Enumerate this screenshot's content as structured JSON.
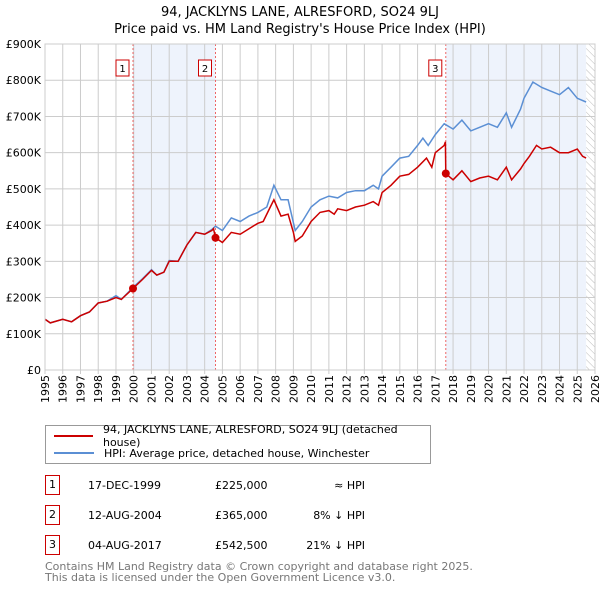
{
  "title": {
    "line1": "94, JACKLYNS LANE, ALRESFORD, SO24 9LJ",
    "line2": "Price paid vs. HM Land Registry's House Price Index (HPI)"
  },
  "legend": {
    "red": "94, JACKLYNS LANE, ALRESFORD, SO24 9LJ (detached house)",
    "blue": "HPI: Average price, detached house, Winchester"
  },
  "transactions": [
    {
      "n": "1",
      "date": "17-DEC-1999",
      "price": "£225,000",
      "hpi": "≈ HPI"
    },
    {
      "n": "2",
      "date": "12-AUG-2004",
      "price": "£365,000",
      "hpi": "8% ↓ HPI"
    },
    {
      "n": "3",
      "date": "04-AUG-2017",
      "price": "£542,500",
      "hpi": "21% ↓ HPI"
    }
  ],
  "footer": {
    "line1": "Contains HM Land Registry data © Crown copyright and database right 2025.",
    "line2": "This data is licensed under the Open Government Licence v3.0."
  },
  "chart_data": {
    "type": "line",
    "xlim": [
      1995,
      2026
    ],
    "ylim": [
      0,
      900000
    ],
    "yticks": [
      0,
      100000,
      200000,
      300000,
      400000,
      500000,
      600000,
      700000,
      800000,
      900000
    ],
    "ytick_labels": [
      "£0",
      "£100K",
      "£200K",
      "£300K",
      "£400K",
      "£500K",
      "£600K",
      "£700K",
      "£800K",
      "£900K"
    ],
    "xticks": [
      "1995",
      "1996",
      "1997",
      "1998",
      "1999",
      "2000",
      "2001",
      "2002",
      "2003",
      "2004",
      "2005",
      "2006",
      "2007",
      "2008",
      "2009",
      "2010",
      "2011",
      "2012",
      "2013",
      "2014",
      "2015",
      "2016",
      "2017",
      "2018",
      "2019",
      "2020",
      "2021",
      "2022",
      "2023",
      "2024",
      "2025",
      "2026"
    ],
    "grid": true,
    "colors": {
      "red": "#cc0000",
      "blue": "#5b8fd4",
      "shade": "#eef3fc"
    },
    "sales": [
      {
        "label": "1",
        "x": 1999.96,
        "y": 225000
      },
      {
        "label": "2",
        "x": 2004.61,
        "y": 365000
      },
      {
        "label": "3",
        "x": 2017.59,
        "y": 542500
      }
    ],
    "shaded_ranges": [
      [
        1999.96,
        2004.61
      ],
      [
        2017.59,
        2025.5
      ]
    ],
    "hatched_from": 2025.5,
    "series": [
      {
        "name": "94, JACKLYNS LANE, ALRESFORD, SO24 9LJ (detached house)",
        "color": "#cc0000",
        "points": [
          [
            1995,
            140
          ],
          [
            1995.3,
            130
          ],
          [
            1996,
            140
          ],
          [
            1996.5,
            133
          ],
          [
            1997,
            150
          ],
          [
            1997.5,
            160
          ],
          [
            1998,
            185
          ],
          [
            1998.5,
            190
          ],
          [
            1999,
            200
          ],
          [
            1999.3,
            195
          ],
          [
            1999.96,
            225
          ],
          [
            2000.5,
            250
          ],
          [
            2001,
            275
          ],
          [
            2001.3,
            262
          ],
          [
            2001.7,
            270
          ],
          [
            2002,
            300
          ],
          [
            2002.5,
            300
          ],
          [
            2003,
            345
          ],
          [
            2003.5,
            380
          ],
          [
            2004,
            375
          ],
          [
            2004.4,
            385
          ],
          [
            2004.5,
            390
          ],
          [
            2004.61,
            365
          ],
          [
            2005,
            352
          ],
          [
            2005.5,
            380
          ],
          [
            2006,
            375
          ],
          [
            2006.5,
            390
          ],
          [
            2007,
            405
          ],
          [
            2007.3,
            410
          ],
          [
            2007.7,
            450
          ],
          [
            2007.9,
            470
          ],
          [
            2008.3,
            425
          ],
          [
            2008.7,
            430
          ],
          [
            2009,
            380
          ],
          [
            2009.1,
            355
          ],
          [
            2009.5,
            370
          ],
          [
            2010,
            410
          ],
          [
            2010.5,
            435
          ],
          [
            2011,
            440
          ],
          [
            2011.3,
            430
          ],
          [
            2011.5,
            445
          ],
          [
            2012,
            440
          ],
          [
            2012.5,
            450
          ],
          [
            2013,
            455
          ],
          [
            2013.5,
            465
          ],
          [
            2013.8,
            455
          ],
          [
            2014,
            490
          ],
          [
            2014.5,
            510
          ],
          [
            2015,
            535
          ],
          [
            2015.5,
            540
          ],
          [
            2016,
            560
          ],
          [
            2016.5,
            585
          ],
          [
            2016.8,
            560
          ],
          [
            2017,
            600
          ],
          [
            2017.5,
            620
          ],
          [
            2017.57,
            630
          ],
          [
            2017.59,
            542
          ],
          [
            2018,
            525
          ],
          [
            2018.5,
            550
          ],
          [
            2019,
            520
          ],
          [
            2019.5,
            530
          ],
          [
            2020,
            535
          ],
          [
            2020.5,
            525
          ],
          [
            2021,
            560
          ],
          [
            2021.3,
            525
          ],
          [
            2021.8,
            555
          ],
          [
            2022,
            570
          ],
          [
            2022.3,
            590
          ],
          [
            2022.7,
            620
          ],
          [
            2023,
            610
          ],
          [
            2023.5,
            615
          ],
          [
            2024,
            600
          ],
          [
            2024.5,
            600
          ],
          [
            2025,
            610
          ],
          [
            2025.3,
            590
          ],
          [
            2025.5,
            585
          ]
        ]
      },
      {
        "name": "HPI: Average price, detached house, Winchester",
        "color": "#5b8fd4",
        "points": [
          [
            1995,
            140
          ],
          [
            1995.3,
            130
          ],
          [
            1996,
            140
          ],
          [
            1996.5,
            133
          ],
          [
            1997,
            150
          ],
          [
            1997.5,
            160
          ],
          [
            1998,
            185
          ],
          [
            1998.5,
            190
          ],
          [
            1999,
            205
          ],
          [
            1999.3,
            195
          ],
          [
            1999.96,
            228
          ],
          [
            2000.5,
            252
          ],
          [
            2001,
            277
          ],
          [
            2001.3,
            262
          ],
          [
            2001.7,
            270
          ],
          [
            2002,
            302
          ],
          [
            2002.5,
            300
          ],
          [
            2003,
            345
          ],
          [
            2003.5,
            380
          ],
          [
            2004,
            375
          ],
          [
            2004.4,
            388
          ],
          [
            2004.61,
            397
          ],
          [
            2005,
            385
          ],
          [
            2005.5,
            420
          ],
          [
            2006,
            410
          ],
          [
            2006.5,
            425
          ],
          [
            2007,
            435
          ],
          [
            2007.5,
            450
          ],
          [
            2007.9,
            510
          ],
          [
            2008.3,
            470
          ],
          [
            2008.7,
            470
          ],
          [
            2009.1,
            385
          ],
          [
            2009.5,
            410
          ],
          [
            2010,
            450
          ],
          [
            2010.5,
            470
          ],
          [
            2011,
            480
          ],
          [
            2011.5,
            475
          ],
          [
            2012,
            490
          ],
          [
            2012.5,
            495
          ],
          [
            2013,
            495
          ],
          [
            2013.5,
            510
          ],
          [
            2013.8,
            500
          ],
          [
            2014,
            535
          ],
          [
            2014.5,
            560
          ],
          [
            2015,
            585
          ],
          [
            2015.5,
            590
          ],
          [
            2016,
            620
          ],
          [
            2016.3,
            640
          ],
          [
            2016.6,
            620
          ],
          [
            2017,
            650
          ],
          [
            2017.5,
            680
          ],
          [
            2018,
            665
          ],
          [
            2018.5,
            690
          ],
          [
            2019,
            660
          ],
          [
            2019.5,
            670
          ],
          [
            2020,
            680
          ],
          [
            2020.5,
            670
          ],
          [
            2021,
            710
          ],
          [
            2021.3,
            670
          ],
          [
            2021.8,
            720
          ],
          [
            2022,
            750
          ],
          [
            2022.5,
            795
          ],
          [
            2023,
            780
          ],
          [
            2023.5,
            770
          ],
          [
            2024,
            760
          ],
          [
            2024.5,
            780
          ],
          [
            2025,
            750
          ],
          [
            2025.5,
            740
          ]
        ]
      }
    ]
  }
}
